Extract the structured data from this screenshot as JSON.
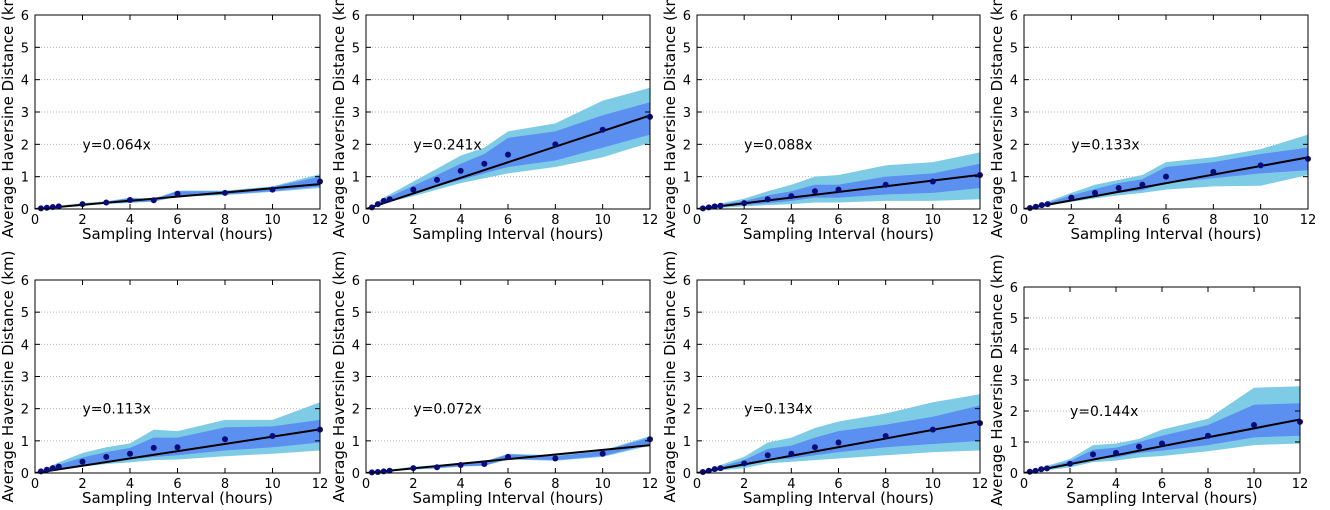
{
  "chart_data": [
    {
      "type": "line",
      "equation": "y=0.064x",
      "slope": 0.064,
      "xlabel": "Sampling Interval (hours)",
      "ylabel": "Average Haversine Distance (km)",
      "xlim": [
        0,
        12
      ],
      "ylim": [
        0,
        6
      ],
      "xticks": [
        0,
        2,
        4,
        6,
        8,
        10,
        12
      ],
      "yticks": [
        0,
        1,
        2,
        3,
        4,
        5,
        6
      ],
      "grid": "horizontal dotted",
      "x": [
        0.25,
        0.5,
        0.75,
        1,
        2,
        3,
        4,
        5,
        6,
        8,
        10,
        12
      ],
      "points": [
        0.02,
        0.04,
        0.06,
        0.08,
        0.15,
        0.2,
        0.28,
        0.27,
        0.47,
        0.5,
        0.6,
        0.85
      ],
      "inner_band": {
        "lower": [
          0.01,
          0.03,
          0.05,
          0.07,
          0.13,
          0.17,
          0.2,
          0.24,
          0.4,
          0.45,
          0.55,
          0.7
        ],
        "upper": [
          0.03,
          0.05,
          0.07,
          0.09,
          0.17,
          0.23,
          0.33,
          0.3,
          0.55,
          0.55,
          0.68,
          1.0
        ]
      },
      "outer_band": {
        "lower": [
          0.01,
          0.03,
          0.05,
          0.06,
          0.12,
          0.16,
          0.19,
          0.23,
          0.38,
          0.43,
          0.53,
          0.65
        ],
        "upper": [
          0.03,
          0.05,
          0.07,
          0.1,
          0.18,
          0.24,
          0.35,
          0.32,
          0.57,
          0.57,
          0.7,
          1.08
        ]
      }
    },
    {
      "type": "line",
      "equation": "y=0.241x",
      "slope": 0.241,
      "xlabel": "Sampling Interval (hours)",
      "ylabel": "Average Haversine Distance (km)",
      "xlim": [
        0,
        12
      ],
      "ylim": [
        0,
        6
      ],
      "xticks": [
        0,
        2,
        4,
        6,
        8,
        10,
        12
      ],
      "yticks": [
        0,
        1,
        2,
        3,
        4,
        5,
        6
      ],
      "grid": "horizontal dotted",
      "x": [
        0.25,
        0.5,
        0.75,
        1,
        2,
        3,
        4,
        5,
        6,
        8,
        10,
        12
      ],
      "points": [
        0.05,
        0.15,
        0.25,
        0.3,
        0.6,
        0.9,
        1.18,
        1.4,
        1.68,
        2.0,
        2.45,
        2.85
      ],
      "inner_band": {
        "lower": [
          0.04,
          0.12,
          0.2,
          0.25,
          0.45,
          0.7,
          0.9,
          1.1,
          1.3,
          1.5,
          1.9,
          2.3
        ],
        "upper": [
          0.07,
          0.18,
          0.3,
          0.38,
          0.72,
          1.05,
          1.4,
          1.7,
          2.2,
          2.4,
          2.9,
          3.3
        ]
      },
      "outer_band": {
        "lower": [
          0.03,
          0.1,
          0.17,
          0.22,
          0.4,
          0.6,
          0.8,
          0.95,
          1.1,
          1.3,
          1.6,
          2.05
        ],
        "upper": [
          0.08,
          0.22,
          0.35,
          0.45,
          0.85,
          1.25,
          1.65,
          1.9,
          2.4,
          2.65,
          3.35,
          3.75
        ]
      }
    },
    {
      "type": "line",
      "equation": "y=0.088x",
      "slope": 0.088,
      "xlabel": "Sampling Interval (hours)",
      "ylabel": "Average Haversine Distance (km)",
      "xlim": [
        0,
        12
      ],
      "ylim": [
        0,
        6
      ],
      "xticks": [
        0,
        2,
        4,
        6,
        8,
        10,
        12
      ],
      "yticks": [
        0,
        1,
        2,
        3,
        4,
        5,
        6
      ],
      "grid": "horizontal dotted",
      "x": [
        0.25,
        0.5,
        0.75,
        1,
        2,
        3,
        4,
        5,
        6,
        8,
        10,
        12
      ],
      "points": [
        0.02,
        0.05,
        0.08,
        0.1,
        0.18,
        0.3,
        0.4,
        0.55,
        0.6,
        0.75,
        0.85,
        1.05
      ],
      "inner_band": {
        "lower": [
          0.01,
          0.03,
          0.05,
          0.07,
          0.12,
          0.18,
          0.25,
          0.35,
          0.35,
          0.45,
          0.5,
          0.65
        ],
        "upper": [
          0.03,
          0.07,
          0.1,
          0.13,
          0.25,
          0.42,
          0.55,
          0.75,
          0.75,
          1.0,
          1.1,
          1.4
        ]
      },
      "outer_band": {
        "lower": [
          0.0,
          0.02,
          0.03,
          0.04,
          0.08,
          0.12,
          0.15,
          0.2,
          0.2,
          0.25,
          0.25,
          0.3
        ],
        "upper": [
          0.04,
          0.09,
          0.13,
          0.17,
          0.32,
          0.55,
          0.75,
          1.0,
          1.05,
          1.35,
          1.45,
          1.75
        ]
      }
    },
    {
      "type": "line",
      "equation": "y=0.133x",
      "slope": 0.133,
      "xlabel": "Sampling Interval (hours)",
      "ylabel": "Average Haversine Distance (km)",
      "xlim": [
        0,
        12
      ],
      "ylim": [
        0,
        6
      ],
      "xticks": [
        0,
        2,
        4,
        6,
        8,
        10,
        12
      ],
      "yticks": [
        0,
        1,
        2,
        3,
        4,
        5,
        6
      ],
      "grid": "horizontal dotted",
      "x": [
        0.25,
        0.5,
        0.75,
        1,
        2,
        3,
        4,
        5,
        6,
        8,
        10,
        12
      ],
      "points": [
        0.03,
        0.07,
        0.12,
        0.15,
        0.35,
        0.5,
        0.65,
        0.75,
        1.0,
        1.15,
        1.35,
        1.55
      ],
      "inner_band": {
        "lower": [
          0.02,
          0.05,
          0.09,
          0.12,
          0.28,
          0.4,
          0.5,
          0.58,
          0.8,
          0.95,
          1.1,
          1.2
        ],
        "upper": [
          0.04,
          0.09,
          0.15,
          0.19,
          0.42,
          0.62,
          0.8,
          0.92,
          1.3,
          1.45,
          1.7,
          1.9
        ]
      },
      "outer_band": {
        "lower": [
          0.01,
          0.04,
          0.07,
          0.1,
          0.22,
          0.33,
          0.42,
          0.5,
          0.6,
          0.7,
          0.72,
          1.05
        ],
        "upper": [
          0.05,
          0.11,
          0.18,
          0.23,
          0.5,
          0.75,
          0.9,
          1.05,
          1.45,
          1.6,
          1.85,
          2.3
        ]
      }
    },
    {
      "type": "line",
      "equation": "y=0.113x",
      "slope": 0.113,
      "xlabel": "Sampling Interval (hours)",
      "ylabel": "Average Haversine Distance (km)",
      "xlim": [
        0,
        12
      ],
      "ylim": [
        0,
        6
      ],
      "xticks": [
        0,
        2,
        4,
        6,
        8,
        10,
        12
      ],
      "yticks": [
        0,
        1,
        2,
        3,
        4,
        5,
        6
      ],
      "grid": "horizontal dotted",
      "x": [
        0.25,
        0.5,
        0.75,
        1,
        2,
        3,
        4,
        5,
        6,
        8,
        10,
        12
      ],
      "points": [
        0.05,
        0.1,
        0.15,
        0.2,
        0.35,
        0.5,
        0.6,
        0.78,
        0.8,
        1.05,
        1.15,
        1.35
      ],
      "inner_band": {
        "lower": [
          0.03,
          0.07,
          0.1,
          0.14,
          0.25,
          0.35,
          0.42,
          0.5,
          0.55,
          0.7,
          0.8,
          0.95
        ],
        "upper": [
          0.07,
          0.13,
          0.2,
          0.26,
          0.48,
          0.65,
          0.78,
          1.1,
          1.1,
          1.42,
          1.45,
          1.65
        ]
      },
      "outer_band": {
        "lower": [
          0.02,
          0.05,
          0.08,
          0.1,
          0.2,
          0.28,
          0.33,
          0.4,
          0.42,
          0.52,
          0.6,
          0.7
        ],
        "upper": [
          0.08,
          0.16,
          0.25,
          0.33,
          0.62,
          0.8,
          0.92,
          1.35,
          1.3,
          1.65,
          1.65,
          2.2
        ]
      }
    },
    {
      "type": "line",
      "equation": "y=0.072x",
      "slope": 0.072,
      "xlabel": "Sampling Interval (hours)",
      "ylabel": "Average Haversine Distance (km)",
      "xlim": [
        0,
        12
      ],
      "ylim": [
        0,
        6
      ],
      "xticks": [
        0,
        2,
        4,
        6,
        8,
        10,
        12
      ],
      "yticks": [
        0,
        1,
        2,
        3,
        4,
        5,
        6
      ],
      "grid": "horizontal dotted",
      "x": [
        0.25,
        0.5,
        0.75,
        1,
        2,
        3,
        4,
        5,
        6,
        8,
        10,
        12
      ],
      "points": [
        0.02,
        0.03,
        0.05,
        0.07,
        0.15,
        0.18,
        0.25,
        0.28,
        0.5,
        0.45,
        0.6,
        1.05
      ],
      "inner_band": {
        "lower": [
          0.01,
          0.02,
          0.04,
          0.05,
          0.12,
          0.15,
          0.21,
          0.23,
          0.44,
          0.4,
          0.53,
          0.9
        ],
        "upper": [
          0.03,
          0.04,
          0.06,
          0.09,
          0.18,
          0.22,
          0.3,
          0.34,
          0.58,
          0.52,
          0.68,
          1.1
        ]
      },
      "outer_band": {
        "lower": [
          0.01,
          0.02,
          0.03,
          0.05,
          0.11,
          0.14,
          0.2,
          0.22,
          0.42,
          0.38,
          0.5,
          0.85
        ],
        "upper": [
          0.03,
          0.05,
          0.07,
          0.1,
          0.2,
          0.24,
          0.32,
          0.36,
          0.6,
          0.55,
          0.7,
          1.15
        ]
      }
    },
    {
      "type": "line",
      "equation": "y=0.134x",
      "slope": 0.134,
      "xlabel": "Sampling Interval (hours)",
      "ylabel": "Average Haversine Distance (km)",
      "xlim": [
        0,
        12
      ],
      "ylim": [
        0,
        6
      ],
      "xticks": [
        0,
        2,
        4,
        6,
        8,
        10,
        12
      ],
      "yticks": [
        0,
        1,
        2,
        3,
        4,
        5,
        6
      ],
      "grid": "horizontal dotted",
      "x": [
        0.25,
        0.5,
        0.75,
        1,
        2,
        3,
        4,
        5,
        6,
        8,
        10,
        12
      ],
      "points": [
        0.03,
        0.07,
        0.12,
        0.15,
        0.3,
        0.55,
        0.6,
        0.8,
        0.95,
        1.15,
        1.35,
        1.55
      ],
      "inner_band": {
        "lower": [
          0.02,
          0.05,
          0.08,
          0.11,
          0.22,
          0.4,
          0.45,
          0.55,
          0.65,
          0.8,
          0.9,
          1.0
        ],
        "upper": [
          0.04,
          0.09,
          0.15,
          0.2,
          0.4,
          0.75,
          0.85,
          1.1,
          1.3,
          1.5,
          1.75,
          2.1
        ]
      },
      "outer_band": {
        "lower": [
          0.01,
          0.03,
          0.06,
          0.08,
          0.15,
          0.3,
          0.35,
          0.4,
          0.45,
          0.55,
          0.65,
          0.7
        ],
        "upper": [
          0.05,
          0.11,
          0.18,
          0.25,
          0.5,
          0.95,
          1.1,
          1.4,
          1.6,
          1.85,
          2.2,
          2.45
        ]
      }
    },
    {
      "type": "line",
      "equation": "y=0.144x",
      "slope": 0.144,
      "xlabel": "Sampling Interval (hours)",
      "ylabel": "Average Haversine Distance (km)",
      "xlim": [
        0,
        12
      ],
      "ylim": [
        0,
        6
      ],
      "xticks": [
        0,
        2,
        4,
        6,
        8,
        10,
        12
      ],
      "yticks": [
        0,
        1,
        2,
        3,
        4,
        5,
        6
      ],
      "grid": "horizontal dotted",
      "x": [
        0.25,
        0.5,
        0.75,
        1,
        2,
        3,
        4,
        5,
        6,
        8,
        10,
        12
      ],
      "points": [
        0.04,
        0.07,
        0.12,
        0.15,
        0.3,
        0.6,
        0.65,
        0.85,
        0.95,
        1.2,
        1.55,
        1.65
      ],
      "inner_band": {
        "lower": [
          0.03,
          0.05,
          0.09,
          0.12,
          0.24,
          0.45,
          0.5,
          0.65,
          0.72,
          0.9,
          1.15,
          1.2
        ],
        "upper": [
          0.05,
          0.09,
          0.15,
          0.19,
          0.38,
          0.75,
          0.82,
          1.0,
          1.2,
          1.55,
          2.2,
          2.25
        ]
      },
      "outer_band": {
        "lower": [
          0.02,
          0.04,
          0.07,
          0.09,
          0.18,
          0.35,
          0.4,
          0.5,
          0.55,
          0.7,
          0.9,
          0.95
        ],
        "upper": [
          0.06,
          0.11,
          0.18,
          0.23,
          0.45,
          0.9,
          0.95,
          1.1,
          1.4,
          1.75,
          2.75,
          2.8
        ]
      }
    }
  ],
  "colors": {
    "outer_band": "#7ecbe6",
    "inner_band": "#5b8ff0",
    "points": "#0b0b78",
    "fit_line": "#000000",
    "grid": "#b5b5b5"
  }
}
